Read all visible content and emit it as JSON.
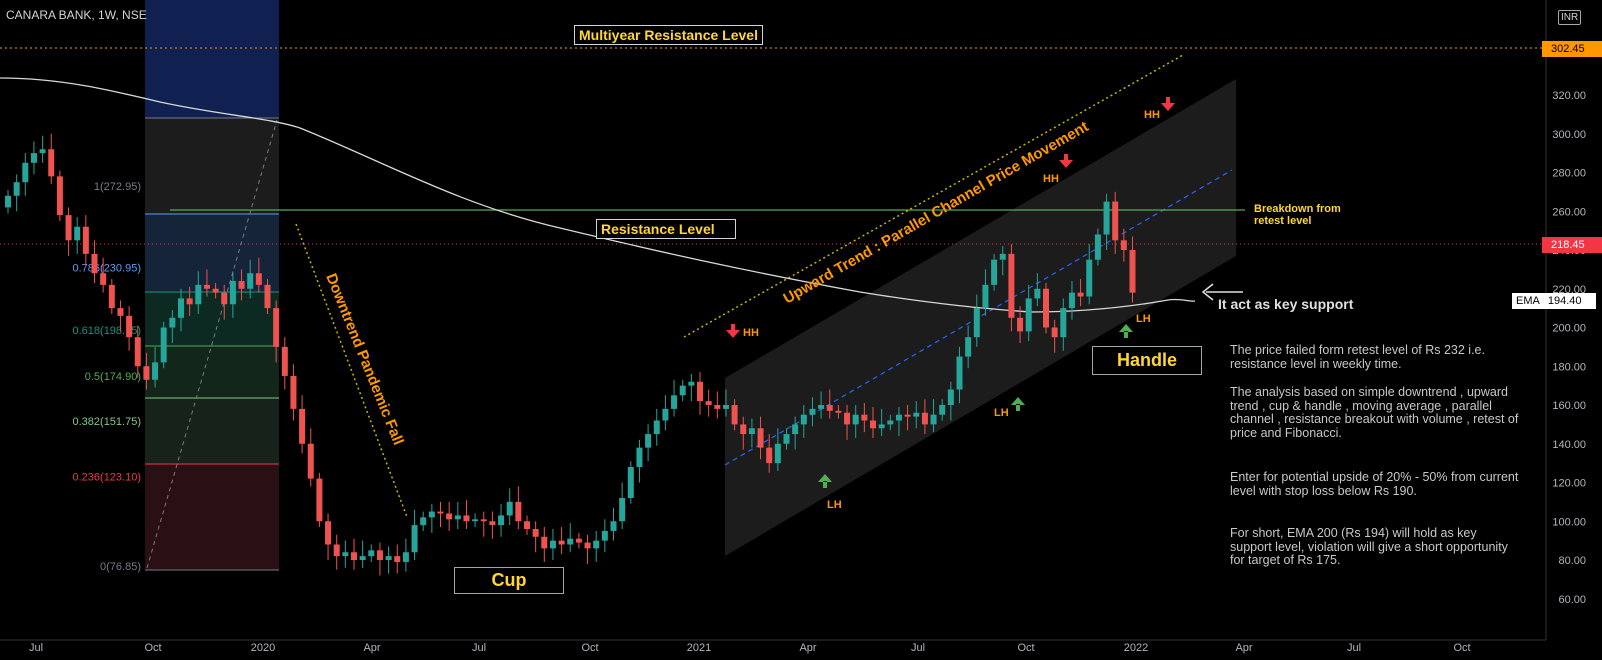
{
  "header": {
    "symbol": "CANARA BANK, 1W, NSE",
    "currency": "INR"
  },
  "annotations": {
    "multiyear_resistance": "Multiyear Resistance Level",
    "resistance": "Resistance Level",
    "downtrend": "Downtrend Pandemic Fall",
    "upward_trend": "Upward Trend : Parallel Channel Price Movement",
    "cup": "Cup",
    "handle": "Handle",
    "breakdown_line1": "Breakdown from",
    "breakdown_line2": "retest level",
    "key_support": "It act as key support",
    "hh": "HH",
    "lh": "LH"
  },
  "notes": [
    "The price failed form retest level of Rs 232 i.e. resistance level in weekly time.",
    "The analysis based on simple downtrend , upward trend , cup & handle , moving average , parallel channel , resistance breakout with volume , retest of price and Fibonacci.",
    "Enter for potential upside of 20% - 50% from current level with stop loss below Rs 190.",
    "For short, EMA 200 (Rs 194) will hold as key support level, violation will give a short opportunity for target of Rs 175."
  ],
  "price_tags": {
    "resistance": "302.45",
    "last": "218.45",
    "ema_label": "EMA",
    "ema_value": "194.40"
  },
  "chart_data": {
    "type": "candlestick",
    "title": "CANARA BANK, 1W, NSE",
    "x_ticks": [
      "Jul",
      "Oct",
      "2020",
      "Apr",
      "Jul",
      "Oct",
      "2021",
      "Apr",
      "Jul",
      "Oct",
      "2022",
      "Apr",
      "Jul",
      "Oct"
    ],
    "y_ticks": [
      "60.00",
      "80.00",
      "100.00",
      "120.00",
      "140.00",
      "160.00",
      "180.00",
      "200.00",
      "220.00",
      "240.00",
      "260.00",
      "280.00",
      "300.00",
      "320.00"
    ],
    "ylim": [
      53,
      330
    ],
    "y_scale": "linear",
    "levels": {
      "multiyear_resistance": 302.45,
      "resistance": 232,
      "last_price": 218.45,
      "ema200": 194.4
    },
    "fibonacci": [
      {
        "label": "1(272.95)",
        "value": 272.95,
        "color": "#787b86"
      },
      {
        "label": "0.786(230.95)",
        "value": 230.95,
        "color": "#5b9cf6"
      },
      {
        "label": "0.618(198.75)",
        "value": 198.75,
        "color": "#089981"
      },
      {
        "label": "0.5(174.90)",
        "value": 174.9,
        "color": "#4caf50"
      },
      {
        "label": "0.382(151.75)",
        "value": 151.75,
        "color": "#81c784"
      },
      {
        "label": "0.236(123.10)",
        "value": 123.1,
        "color": "#f23645"
      },
      {
        "label": "0(76.85)",
        "value": 76.85,
        "color": "#787b86"
      }
    ],
    "close_series": [
      268,
      275,
      285,
      290,
      292,
      278,
      258,
      245,
      252,
      238,
      228,
      222,
      210,
      206,
      195,
      180,
      173,
      182,
      200,
      205,
      215,
      212,
      222,
      220,
      218,
      212,
      224,
      220,
      228,
      222,
      210,
      190,
      175,
      158,
      140,
      122,
      100,
      88,
      82,
      84,
      80,
      82,
      85,
      80,
      82,
      79,
      84,
      98,
      102,
      105,
      104,
      101,
      103,
      100,
      101,
      100,
      98,
      103,
      110,
      100,
      96,
      92,
      86,
      90,
      88,
      91,
      89,
      86,
      90,
      95,
      100,
      112,
      128,
      138,
      145,
      152,
      158,
      165,
      170,
      172,
      162,
      160,
      158,
      160,
      150,
      145,
      148,
      138,
      130,
      140,
      145,
      150,
      155,
      158,
      160,
      157,
      156,
      150,
      155,
      152,
      148,
      150,
      152,
      155,
      154,
      156,
      150,
      155,
      160,
      168,
      185,
      195,
      210,
      222,
      235,
      238,
      205,
      198,
      215,
      220,
      200,
      195,
      210,
      218,
      216,
      235,
      248,
      265,
      245,
      240,
      218
    ]
  }
}
